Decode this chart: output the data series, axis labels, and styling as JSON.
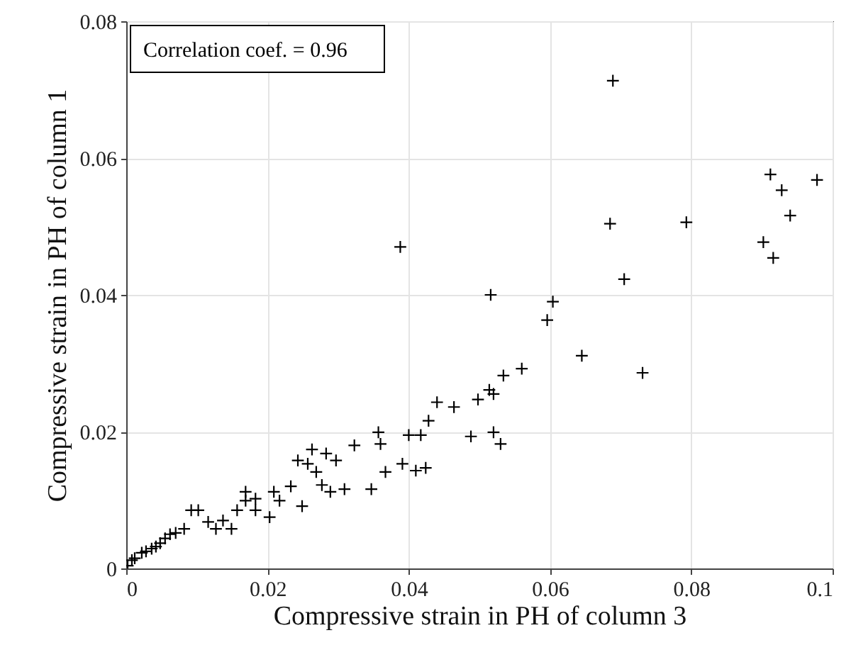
{
  "chart_data": {
    "type": "scatter",
    "xlabel": "Compressive strain in PH of column 3",
    "ylabel": "Compressive strain in PH of column 1",
    "annotations": [
      "Correlation coef. = 0.96"
    ],
    "xlim": [
      0,
      0.1
    ],
    "ylim": [
      0,
      0.08
    ],
    "xticks": [
      0,
      0.02,
      0.04,
      0.06,
      0.08,
      0.1
    ],
    "yticks": [
      0,
      0.02,
      0.04,
      0.06,
      0.08
    ],
    "grid": true,
    "marker": "cross",
    "series": [
      {
        "color": "#000000",
        "x": [
          0.0689,
          0.0388,
          0.0912,
          0.0928,
          0.094,
          0.0902,
          0.0916,
          0.0978,
          0.0685,
          0.0793,
          0.0705,
          0.0604,
          0.0596,
          0.0645,
          0.0731,
          0.0516,
          0.056,
          0.0534,
          0.0514,
          0.052,
          0.0498,
          0.0488,
          0.052,
          0.053,
          0.044,
          0.0464,
          0.0357,
          0.036,
          0.0323,
          0.04,
          0.0417,
          0.0428,
          0.0367,
          0.0391,
          0.041,
          0.0424,
          0.0347,
          0.0283,
          0.0297,
          0.0243,
          0.0257,
          0.0269,
          0.0277,
          0.0289,
          0.0309,
          0.0249,
          0.0233,
          0.0209,
          0.0203,
          0.0183,
          0.0169,
          0.0157,
          0.0137,
          0.0116,
          0.0102,
          0.0092,
          0.0082,
          0.0062,
          0.0048,
          0.0036,
          0.0022,
          0.0008,
          0.0002,
          0.0127,
          0.0149,
          0.0183,
          0.0217,
          0.0169,
          0.0263,
          0.0012,
          0.0028,
          0.0042,
          0.0055,
          0.007
        ],
        "values": [
          0.0713,
          0.047,
          0.0576,
          0.0553,
          0.0516,
          0.0477,
          0.0454,
          0.0568,
          0.0504,
          0.0506,
          0.0423,
          0.039,
          0.0363,
          0.0311,
          0.0286,
          0.04,
          0.0292,
          0.0282,
          0.0261,
          0.0255,
          0.0247,
          0.0193,
          0.0199,
          0.0182,
          0.0243,
          0.0236,
          0.0199,
          0.0182,
          0.018,
          0.0195,
          0.0195,
          0.0216,
          0.0141,
          0.0153,
          0.0143,
          0.0147,
          0.0116,
          0.0168,
          0.0158,
          0.0158,
          0.0153,
          0.0141,
          0.0122,
          0.0112,
          0.0116,
          0.0091,
          0.012,
          0.0112,
          0.0075,
          0.0102,
          0.0099,
          0.0085,
          0.007,
          0.0068,
          0.0085,
          0.0085,
          0.0058,
          0.005,
          0.0037,
          0.0029,
          0.0023,
          0.0012,
          0.0004,
          0.0058,
          0.0058,
          0.0085,
          0.0099,
          0.0112,
          0.0174,
          0.0015,
          0.0025,
          0.0032,
          0.0044,
          0.0052
        ]
      }
    ]
  }
}
